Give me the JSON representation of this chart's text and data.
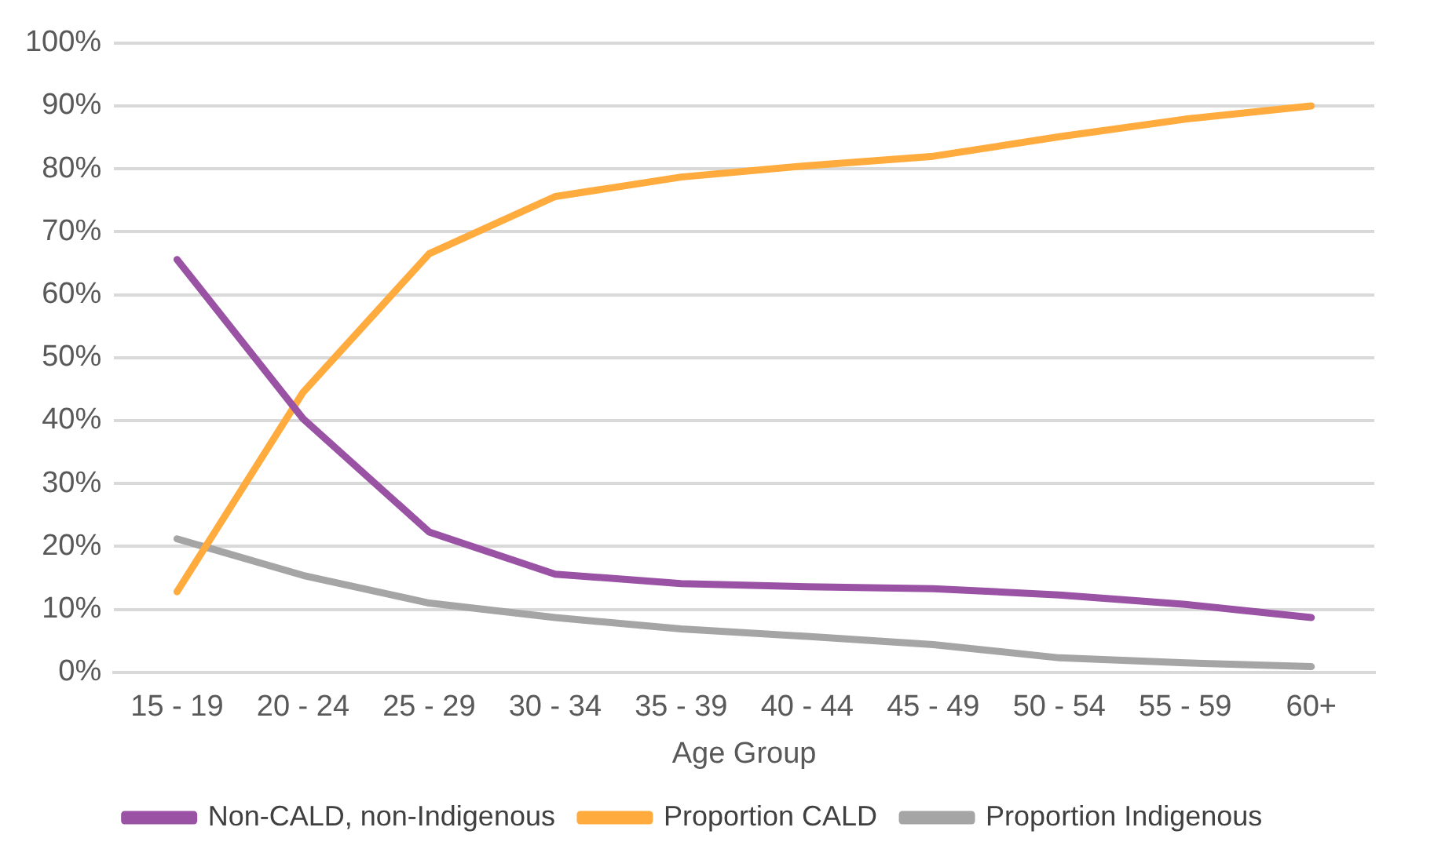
{
  "chart_data": {
    "type": "line",
    "xlabel": "Age Group",
    "categories": [
      "15 - 19",
      "20 - 24",
      "25 - 29",
      "30 - 34",
      "35 - 39",
      "40 - 44",
      "45 - 49",
      "50 - 54",
      "55 - 59",
      "60+"
    ],
    "series": [
      {
        "name": "Non-CALD, non-Indigenous",
        "color": "#9a52a5",
        "values": [
          65.6,
          40.3,
          22.3,
          15.6,
          14.1,
          13.6,
          13.3,
          12.3,
          10.8,
          8.7
        ]
      },
      {
        "name": "Proportion CALD",
        "color": "#ffab3d",
        "values": [
          12.8,
          44.5,
          66.5,
          75.6,
          78.7,
          80.5,
          82,
          85.1,
          87.9,
          90
        ]
      },
      {
        "name": "Proportion Indigenous",
        "color": "#a5a5a5",
        "values": [
          21.2,
          15.4,
          11,
          8.7,
          6.9,
          5.7,
          4.4,
          2.3,
          1.5,
          0.9
        ]
      }
    ],
    "ylim": [
      0,
      100
    ],
    "yticks": [
      {
        "value": 0,
        "label": "0%"
      },
      {
        "value": 10,
        "label": "10%"
      },
      {
        "value": 20,
        "label": "20%"
      },
      {
        "value": 30,
        "label": "30%"
      },
      {
        "value": 40,
        "label": "40%"
      },
      {
        "value": 50,
        "label": "50%"
      },
      {
        "value": 60,
        "label": "60%"
      },
      {
        "value": 70,
        "label": "70%"
      },
      {
        "value": 80,
        "label": "80%"
      },
      {
        "value": 90,
        "label": "90%"
      },
      {
        "value": 100,
        "label": "100%"
      }
    ],
    "grid": "y",
    "legend": "bottom",
    "marker": "none",
    "line_style": "solid"
  }
}
